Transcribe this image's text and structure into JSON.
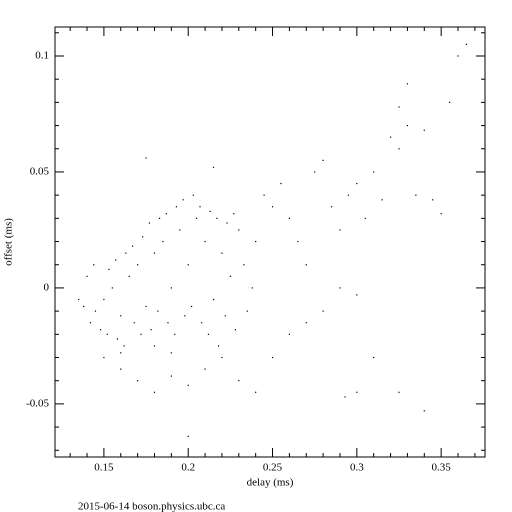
{
  "chart_data": {
    "type": "scatter",
    "x_label": "delay (ms)",
    "y_label": "offset (ms)",
    "footer": "2015-06-14 boson.physics.ubc.ca",
    "xlim": [
      0.121,
      0.376
    ],
    "ylim": [
      -0.0729,
      0.1125
    ],
    "xticks": [
      0.15,
      0.2,
      0.25,
      0.3,
      0.35
    ],
    "yticks": [
      -0.05,
      0,
      0.05,
      0.1
    ],
    "xminorticks": [
      0.13,
      0.14,
      0.16,
      0.17,
      0.18,
      0.19,
      0.21,
      0.22,
      0.23,
      0.24,
      0.26,
      0.27,
      0.28,
      0.29,
      0.31,
      0.32,
      0.33,
      0.34,
      0.36,
      0.37
    ],
    "yminorticks": [
      -0.07,
      -0.06,
      -0.04,
      -0.03,
      -0.02,
      -0.01,
      0.01,
      0.02,
      0.03,
      0.04,
      0.06,
      0.07,
      0.08,
      0.09,
      0.11
    ],
    "color": "#000000",
    "x": [
      0.145,
      0.15,
      0.155,
      0.16,
      0.165,
      0.17,
      0.175,
      0.18,
      0.185,
      0.19,
      0.195,
      0.2,
      0.205,
      0.21,
      0.215,
      0.22,
      0.225,
      0.23,
      0.235,
      0.24,
      0.142,
      0.148,
      0.152,
      0.158,
      0.162,
      0.168,
      0.172,
      0.178,
      0.182,
      0.188,
      0.192,
      0.198,
      0.202,
      0.208,
      0.212,
      0.218,
      0.222,
      0.228,
      0.153,
      0.157,
      0.163,
      0.167,
      0.173,
      0.177,
      0.183,
      0.187,
      0.193,
      0.197,
      0.203,
      0.207,
      0.213,
      0.217,
      0.223,
      0.227,
      0.233,
      0.238,
      0.135,
      0.138,
      0.14,
      0.144,
      0.15,
      0.16,
      0.17,
      0.18,
      0.19,
      0.2,
      0.21,
      0.22,
      0.23,
      0.24,
      0.25,
      0.26,
      0.27,
      0.28,
      0.29,
      0.3,
      0.245,
      0.25,
      0.255,
      0.26,
      0.265,
      0.27,
      0.275,
      0.28,
      0.285,
      0.29,
      0.295,
      0.3,
      0.305,
      0.31,
      0.315,
      0.32,
      0.325,
      0.33,
      0.335,
      0.34,
      0.345,
      0.35,
      0.355,
      0.36,
      0.365,
      0.33,
      0.325,
      0.293,
      0.3,
      0.34,
      0.325,
      0.2,
      0.175,
      0.215,
      0.31,
      0.18,
      0.19,
      0.16
    ],
    "y": [
      -0.01,
      -0.005,
      0.0,
      -0.012,
      0.005,
      0.01,
      -0.008,
      0.015,
      0.02,
      0.0,
      0.025,
      0.01,
      0.03,
      0.02,
      -0.005,
      0.015,
      0.005,
      0.025,
      -0.01,
      0.02,
      -0.015,
      -0.018,
      -0.02,
      -0.022,
      -0.025,
      -0.015,
      -0.02,
      -0.018,
      -0.01,
      -0.015,
      -0.02,
      -0.012,
      -0.008,
      -0.015,
      -0.02,
      -0.025,
      -0.012,
      -0.018,
      0.008,
      0.012,
      0.015,
      0.018,
      0.022,
      0.028,
      0.03,
      0.032,
      0.035,
      0.038,
      0.04,
      0.035,
      0.033,
      0.03,
      0.028,
      0.032,
      0.01,
      0.0,
      -0.005,
      -0.008,
      0.005,
      0.01,
      -0.03,
      -0.035,
      -0.04,
      -0.045,
      -0.038,
      -0.042,
      -0.035,
      -0.03,
      -0.04,
      -0.045,
      -0.03,
      -0.02,
      -0.015,
      -0.01,
      0.0,
      -0.003,
      0.04,
      0.035,
      0.045,
      0.03,
      0.02,
      0.01,
      0.05,
      0.055,
      0.035,
      0.025,
      0.04,
      0.045,
      0.03,
      0.05,
      0.038,
      0.065,
      0.06,
      0.07,
      0.04,
      0.068,
      0.038,
      0.032,
      0.08,
      0.1,
      0.105,
      0.088,
      0.078,
      -0.047,
      -0.045,
      -0.053,
      -0.045,
      -0.064,
      0.056,
      0.052,
      -0.03,
      -0.025,
      -0.028,
      -0.028
    ]
  }
}
